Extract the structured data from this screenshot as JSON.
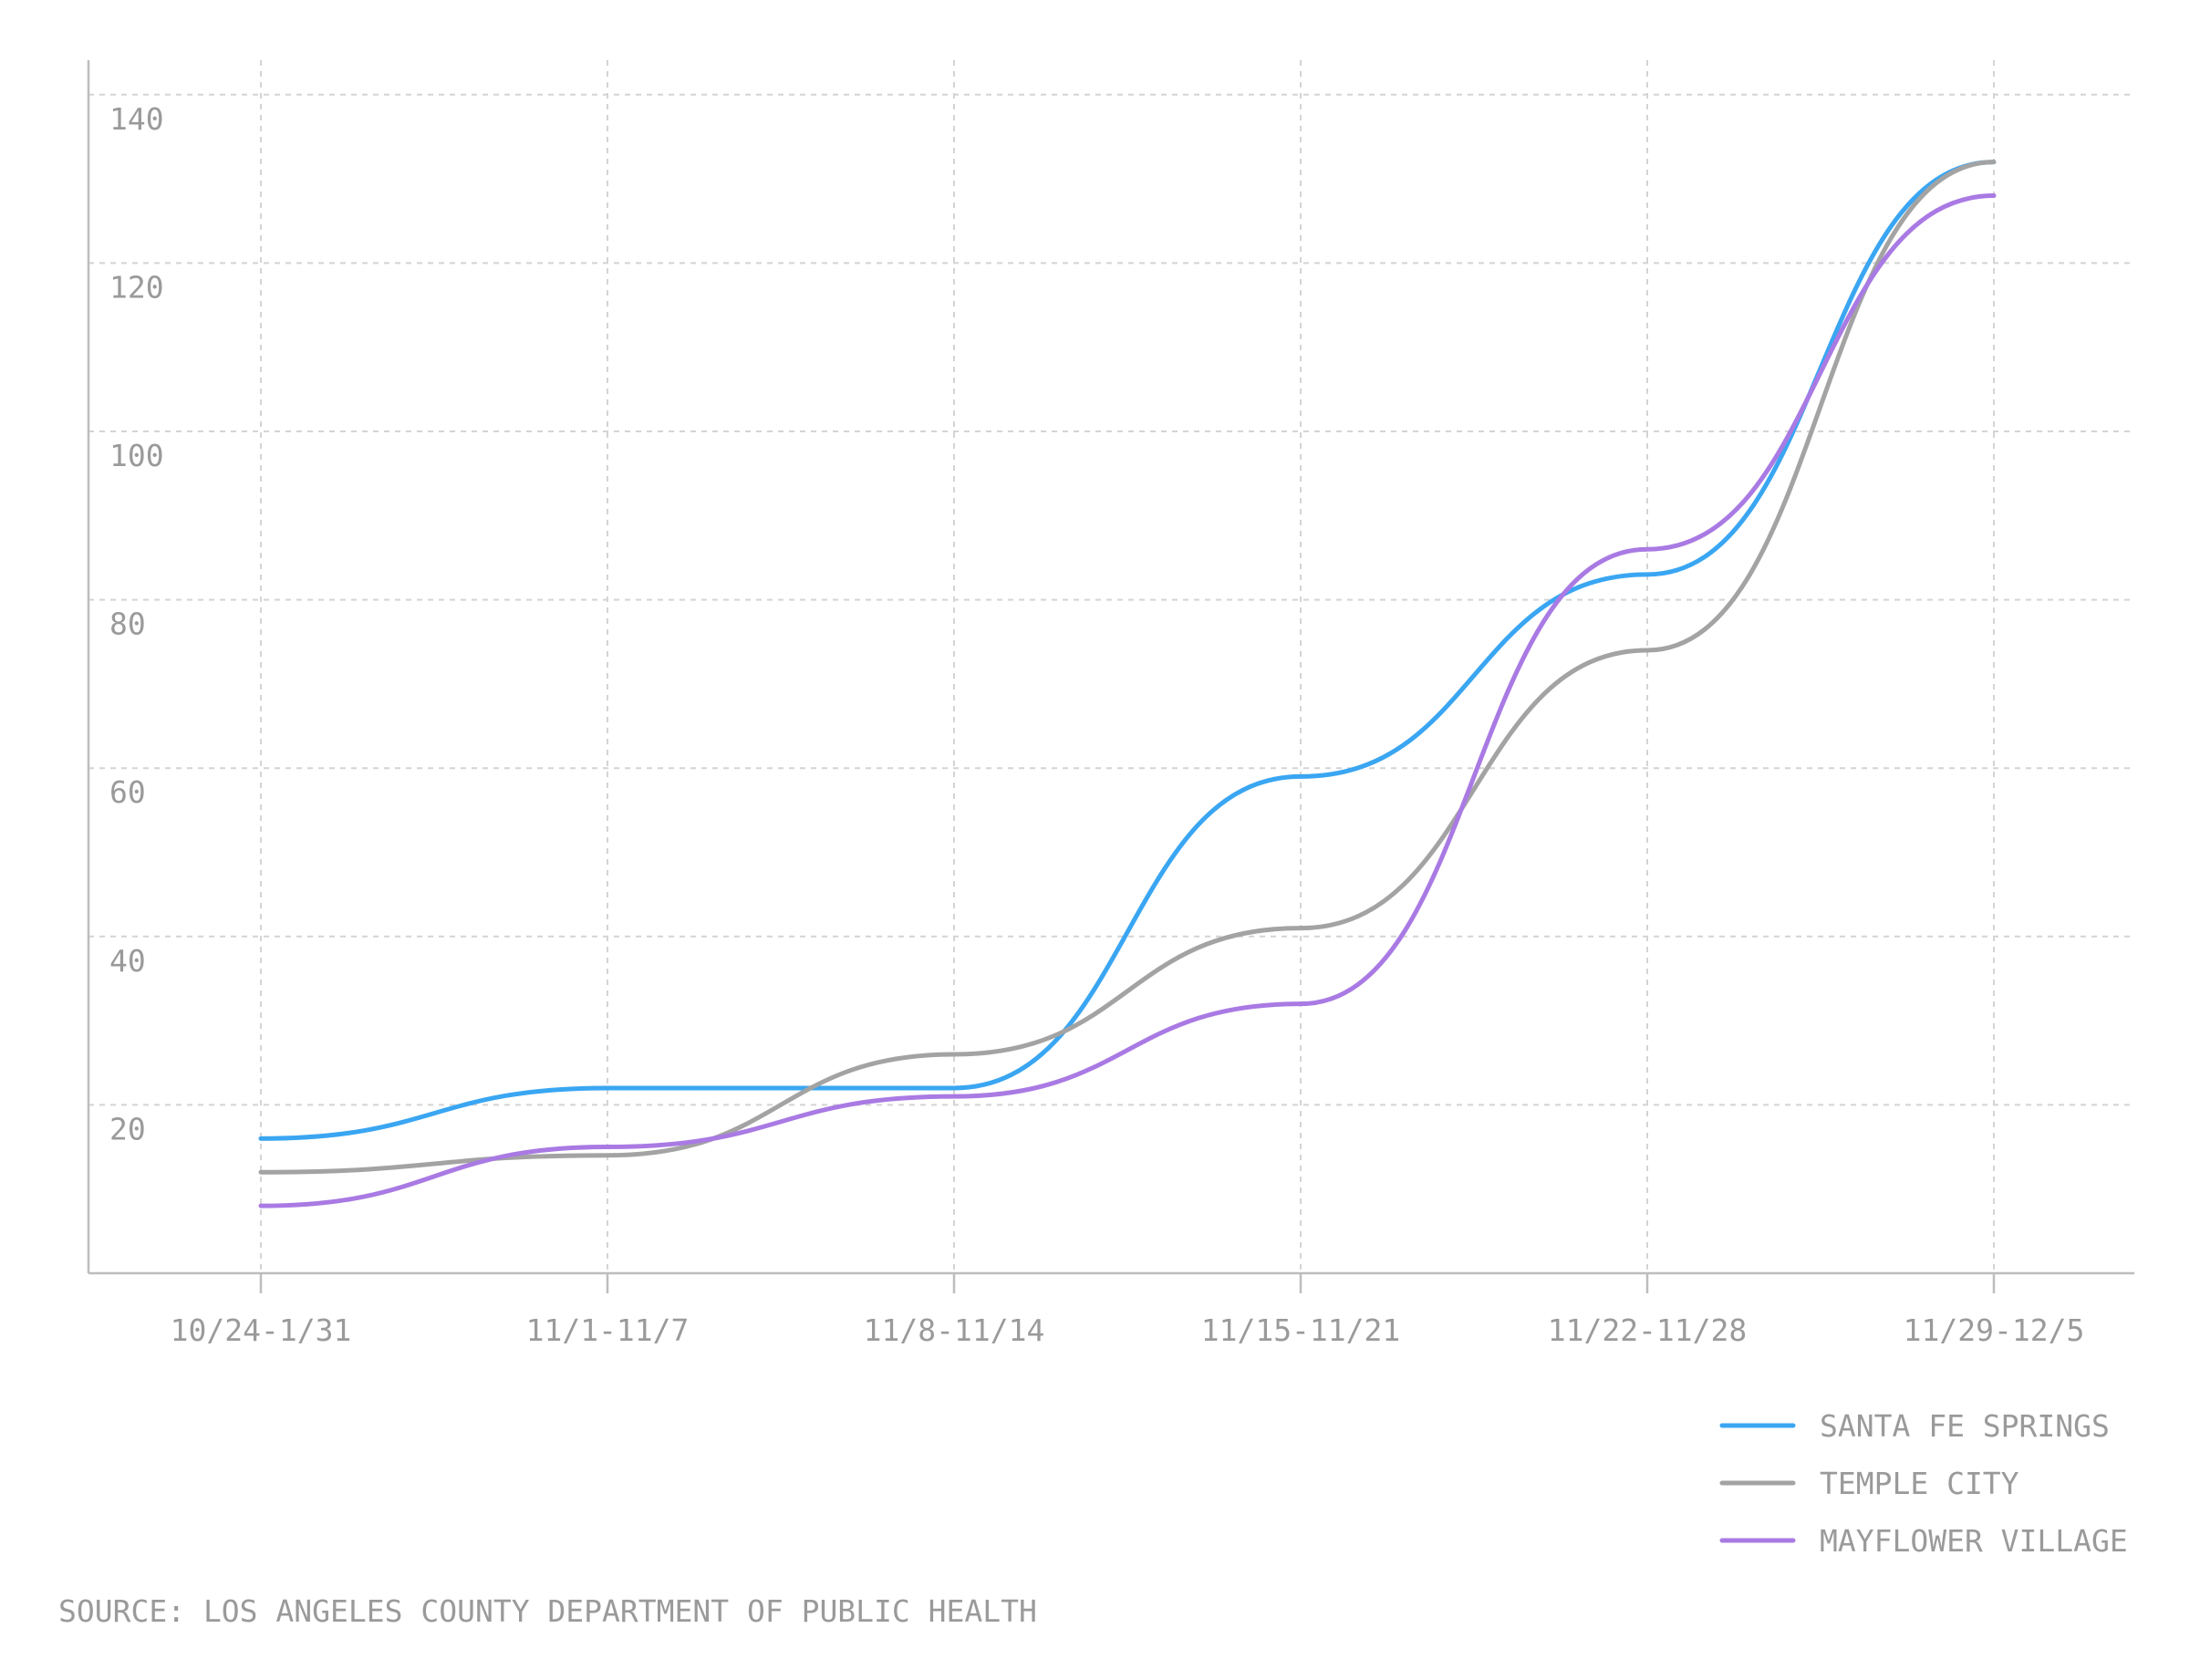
{
  "chart_data": {
    "type": "line",
    "categories": [
      "10/24-1/31",
      "11/1-11/7",
      "11/8-11/14",
      "11/15-11/21",
      "11/22-11/28",
      "11/29-12/5"
    ],
    "series": [
      {
        "name": "SANTA FE SPRINGS",
        "color": "#3aa6f2",
        "values": [
          16,
          22,
          22,
          59,
          83,
          132
        ]
      },
      {
        "name": "TEMPLE CITY",
        "color": "#a3a3a3",
        "values": [
          12,
          14,
          26,
          41,
          74,
          132
        ]
      },
      {
        "name": "MAYFLOWER VILLAGE",
        "color": "#a97ae3",
        "values": [
          8,
          15,
          21,
          32,
          86,
          128
        ]
      }
    ],
    "y_ticks": [
      20,
      40,
      60,
      80,
      100,
      120,
      140
    ],
    "ylim": [
      0,
      140
    ],
    "grid": true,
    "legend_position": "bottom-right",
    "source": "SOURCE: LOS ANGELES COUNTY DEPARTMENT OF PUBLIC HEALTH"
  }
}
